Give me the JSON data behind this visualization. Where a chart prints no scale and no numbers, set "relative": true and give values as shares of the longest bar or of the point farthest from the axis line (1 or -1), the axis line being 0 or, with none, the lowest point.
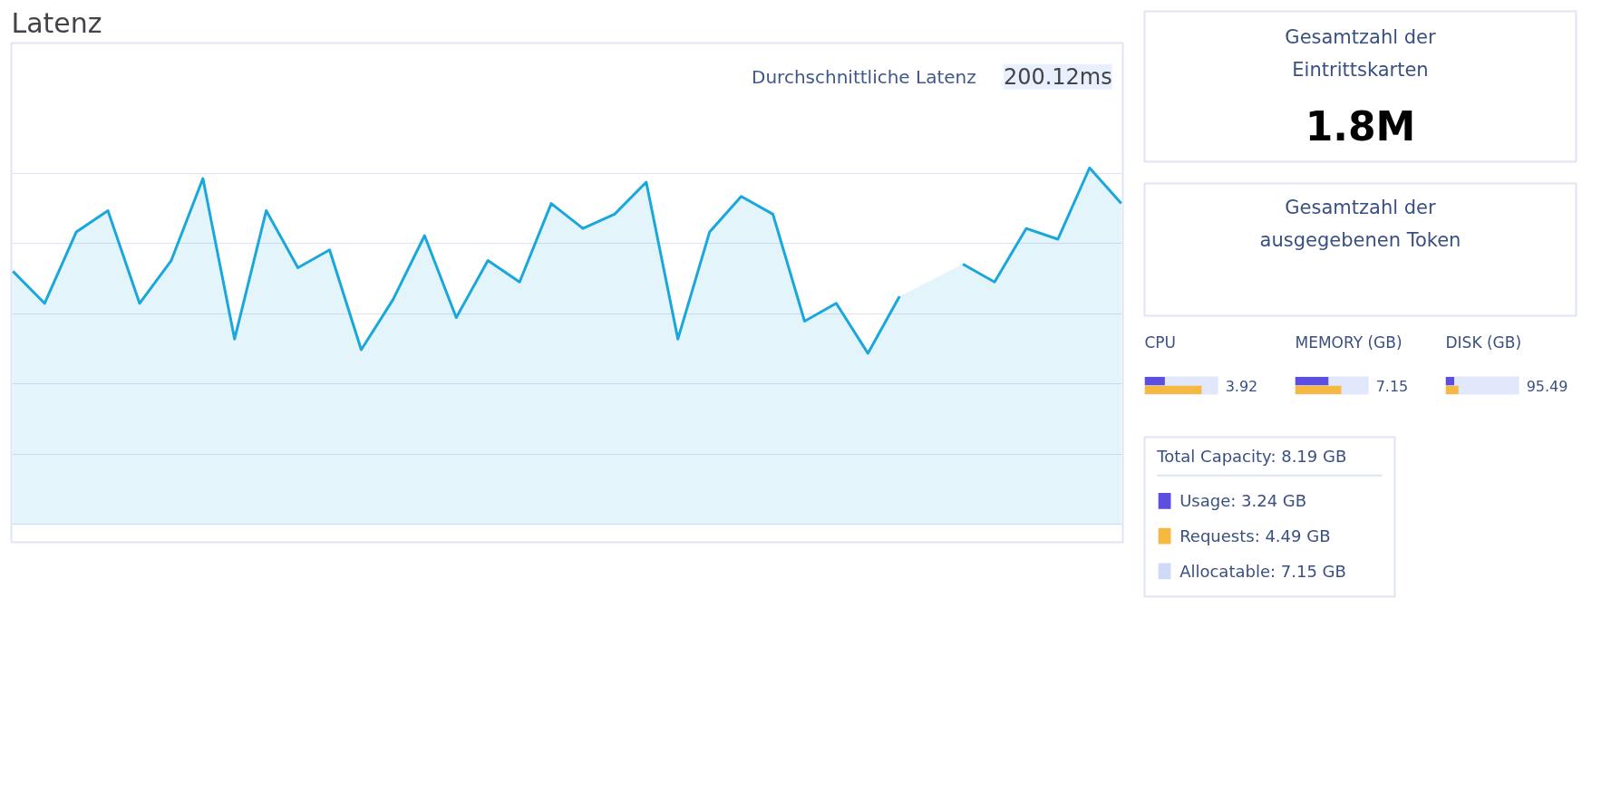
{
  "chart_data": [
    {
      "type": "area",
      "title": "Latenz",
      "annotations": [
        "Durchschnittliche Latenz",
        "200.12ms"
      ],
      "relative": true,
      "grid": "y",
      "categories": [
        null,
        null,
        null,
        null,
        null,
        null,
        null,
        null,
        null,
        null,
        null,
        null,
        null,
        null,
        null,
        null,
        null,
        null,
        null,
        null,
        null,
        null,
        null,
        null,
        null,
        null,
        null,
        null,
        null,
        null,
        null,
        null,
        null,
        null,
        null,
        null
      ],
      "series": [
        {
          "color": "#1aa7dc",
          "values": [
            0.71,
            0.62,
            0.82,
            0.88,
            0.62,
            0.74,
            0.97,
            0.52,
            0.88,
            0.72,
            0.77,
            0.49,
            0.63,
            0.81,
            0.58,
            0.74,
            0.68,
            0.9,
            0.83,
            0.87,
            0.96,
            0.52,
            0.82,
            0.92,
            0.87,
            0.57,
            0.62,
            0.48,
            0.64,
            null,
            0.73,
            0.68,
            0.83,
            0.8,
            1,
            0.9
          ]
        }
      ]
    },
    {
      "type": "other",
      "title": "Gesamtzahl der Eintrittskarten",
      "annotations": [
        "1.8M"
      ]
    },
    {
      "type": "other",
      "title": "Gesamtzahl der ausgegebenen Token"
    },
    {
      "type": "bar",
      "orientation": "horizontal",
      "title": "CPU",
      "categories": [
        null
      ],
      "series": [
        {
          "color": "#e1e8fb",
          "values": [
            3.92
          ],
          "value_labels": [
            "3.92"
          ]
        },
        {
          "color": "#5b4ee0",
          "values": [
            1.08
          ]
        },
        {
          "color": "#f5b942",
          "values": [
            3.04
          ]
        }
      ]
    },
    {
      "type": "bar",
      "orientation": "horizontal",
      "title": "MEMORY (GB)",
      "categories": [
        null
      ],
      "series": [
        {
          "color": "#e1e8fb",
          "values": [
            7.15
          ],
          "value_labels": [
            "7.15"
          ]
        },
        {
          "color": "#5b4ee0",
          "values": [
            3.24
          ]
        },
        {
          "color": "#f5b942",
          "values": [
            4.49
          ]
        }
      ]
    },
    {
      "type": "bar",
      "orientation": "horizontal",
      "title": "DISK (GB)",
      "categories": [
        null
      ],
      "series": [
        {
          "color": "#e1e8fb",
          "values": [
            95.49
          ],
          "value_labels": [
            "95.49"
          ]
        },
        {
          "color": "#5b4ee0",
          "values": [
            11.2
          ]
        },
        {
          "color": "#f5b942",
          "values": [
            16.8
          ]
        }
      ]
    },
    {
      "type": "other",
      "title": "Total Capacity: 8.19 GB",
      "legend": "bottom",
      "series": [
        {
          "name": "Usage: 3.24 GB",
          "color": "#5b4ee0"
        },
        {
          "name": "Requests: 4.49 GB",
          "color": "#f5b942"
        },
        {
          "name": "Allocatable: 7.15 GB",
          "color": "#cfdaf7"
        }
      ]
    }
  ]
}
